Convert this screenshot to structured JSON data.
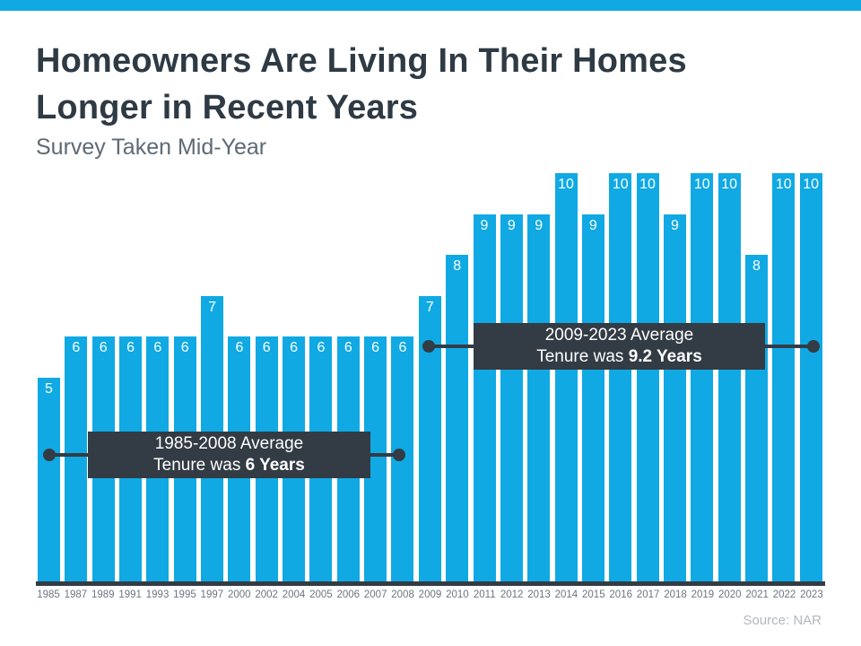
{
  "page": {
    "title_lines": [
      "Homeowners Are Living In Their Homes",
      "Longer in Recent Years"
    ],
    "subtitle": "Survey Taken Mid-Year",
    "source": "Source: NAR"
  },
  "colors": {
    "bar_blue": "#10a9e4",
    "dark_slate": "#333b44",
    "title_text": "#2e3a44",
    "subtitle_text": "#5d6a75",
    "axis_label_text": "#6b7580",
    "source_text": "#b2b8be"
  },
  "chart_data": {
    "type": "bar",
    "title": "Homeowners Are Living In Their Homes Longer in Recent Years",
    "subtitle": "Survey Taken Mid-Year",
    "categories": [
      "1985",
      "1987",
      "1989",
      "1991",
      "1993",
      "1995",
      "1997",
      "2000",
      "2002",
      "2004",
      "2005",
      "2006",
      "2007",
      "2008",
      "2009",
      "2010",
      "2011",
      "2012",
      "2013",
      "2014",
      "2015",
      "2016",
      "2017",
      "2018",
      "2019",
      "2020",
      "2021",
      "2022",
      "2023"
    ],
    "values": [
      5,
      6,
      6,
      6,
      6,
      6,
      7,
      6,
      6,
      6,
      6,
      6,
      6,
      6,
      7,
      8,
      9,
      9,
      9,
      10,
      9,
      10,
      10,
      9,
      10,
      10,
      8,
      10,
      10
    ],
    "xlabel": "",
    "ylabel": "",
    "ylim": [
      0,
      10
    ],
    "grid": false,
    "legend": "none",
    "bar_value_labels": true,
    "source": "Source: NAR"
  },
  "annotations": [
    {
      "line1": "1985-2008 Average",
      "line2_prefix": "Tenure was ",
      "line2_bold": "6 Years"
    },
    {
      "line1": "2009-2023 Average",
      "line2_prefix": "Tenure was ",
      "line2_bold": "9.2 Years"
    }
  ]
}
